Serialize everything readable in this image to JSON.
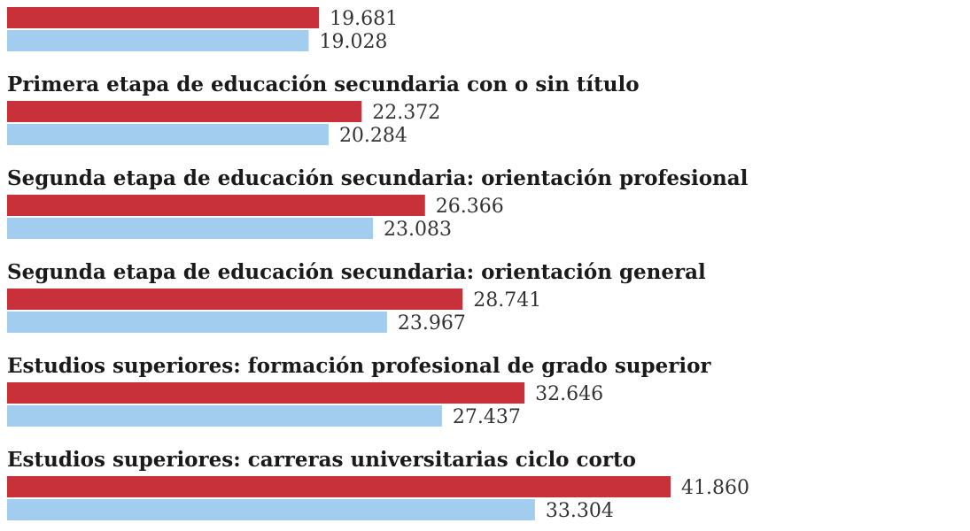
{
  "chart_data": {
    "type": "bar",
    "orientation": "horizontal",
    "categories": [
      "",
      "Primera etapa de educación secundaria con o sin título",
      "Segunda etapa de educación secundaria: orientación profesional",
      "Segunda etapa de educación secundaria: orientación general",
      "Estudios superiores: formación profesional de grado superior",
      "Estudios superiores: carreras universitarias ciclo corto"
    ],
    "series": [
      {
        "values": [
          19681,
          22372,
          26366,
          28741,
          32646,
          41860
        ],
        "value_labels": [
          "19.681",
          "22.372",
          "26.366",
          "28.741",
          "32.646",
          "41.860"
        ],
        "color": "#c8303a"
      },
      {
        "values": [
          19028,
          20284,
          23083,
          23967,
          27437,
          33304
        ],
        "value_labels": [
          "19.028",
          "20.284",
          "23.083",
          "23.967",
          "27.437",
          "33.304"
        ],
        "color": "#a3cdee"
      }
    ],
    "grid": false,
    "legend": "none"
  }
}
